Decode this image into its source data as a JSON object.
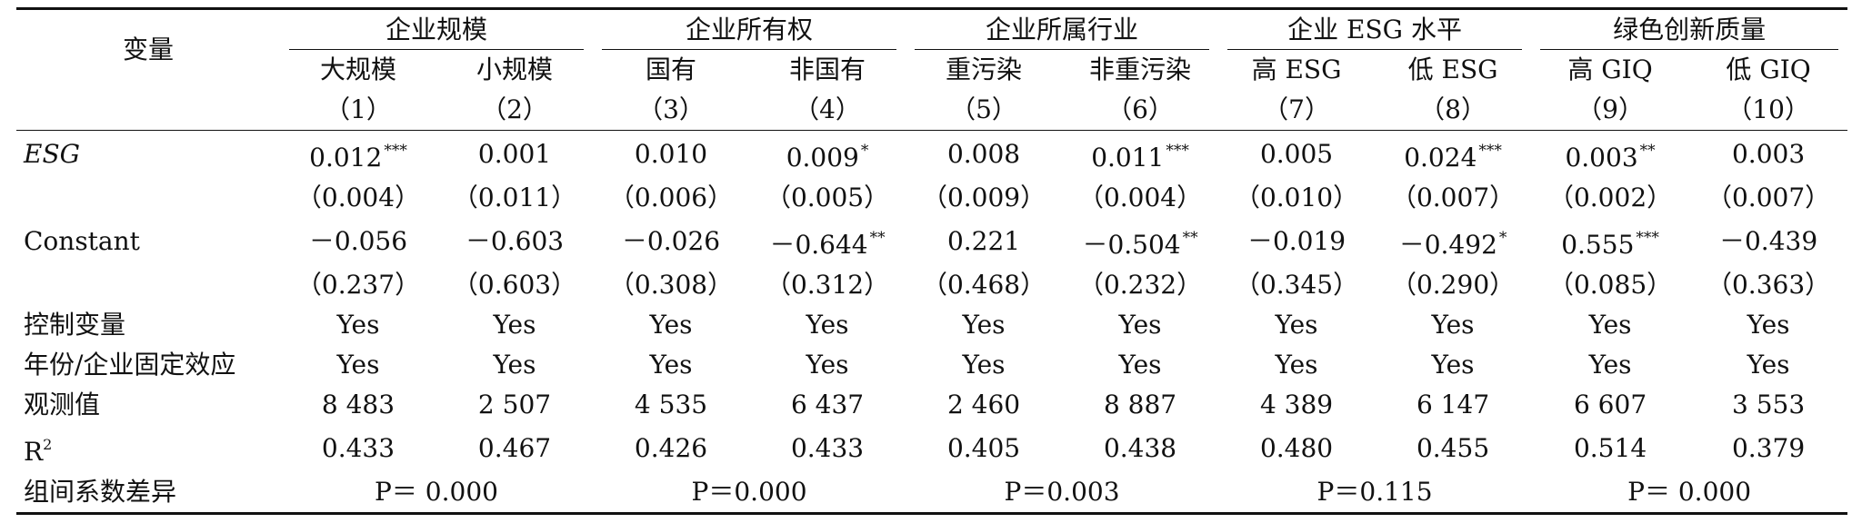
{
  "table": {
    "variable_header": "变量",
    "groups": [
      {
        "label": "企业规模",
        "cols": [
          {
            "name": "大规模",
            "num": "（1）"
          },
          {
            "name": "小规模",
            "num": "（2）"
          }
        ]
      },
      {
        "label": "企业所有权",
        "cols": [
          {
            "name": "国有",
            "num": "（3）"
          },
          {
            "name": "非国有",
            "num": "（4）"
          }
        ]
      },
      {
        "label": "企业所属行业",
        "cols": [
          {
            "name": "重污染",
            "num": "（5）"
          },
          {
            "name": "非重污染",
            "num": "（6）"
          }
        ]
      },
      {
        "label": "企业 ESG 水平",
        "cols": [
          {
            "name": "高 ESG",
            "num": "（7）"
          },
          {
            "name": "低 ESG",
            "num": "（8）"
          }
        ]
      },
      {
        "label": "绿色创新质量",
        "cols": [
          {
            "name": "高 GIQ",
            "num": "（9）"
          },
          {
            "name": "低 GIQ",
            "num": "（10）"
          }
        ]
      }
    ],
    "rows": {
      "esg": {
        "label": "ESG",
        "coef": [
          {
            "v": "0.012",
            "s": "***"
          },
          {
            "v": "0.001",
            "s": ""
          },
          {
            "v": "0.010",
            "s": ""
          },
          {
            "v": "0.009",
            "s": "*"
          },
          {
            "v": "0.008",
            "s": ""
          },
          {
            "v": "0.011",
            "s": "***"
          },
          {
            "v": "0.005",
            "s": ""
          },
          {
            "v": "0.024",
            "s": "***"
          },
          {
            "v": "0.003",
            "s": "**"
          },
          {
            "v": "0.003",
            "s": ""
          }
        ],
        "se": [
          "（0.004）",
          "（0.011）",
          "（0.006）",
          "（0.005）",
          "（0.009）",
          "（0.004）",
          "（0.010）",
          "（0.007）",
          "（0.002）",
          "（0.007）"
        ]
      },
      "constant": {
        "label": "Constant",
        "coef": [
          {
            "v": "－0.056",
            "s": ""
          },
          {
            "v": "－0.603",
            "s": ""
          },
          {
            "v": "－0.026",
            "s": ""
          },
          {
            "v": "－0.644",
            "s": "**"
          },
          {
            "v": "0.221",
            "s": ""
          },
          {
            "v": "－0.504",
            "s": "**"
          },
          {
            "v": "－0.019",
            "s": ""
          },
          {
            "v": "－0.492",
            "s": "*"
          },
          {
            "v": "0.555",
            "s": "***"
          },
          {
            "v": "－0.439",
            "s": ""
          }
        ],
        "se": [
          "（0.237）",
          "（0.603）",
          "（0.308）",
          "（0.312）",
          "（0.468）",
          "（0.232）",
          "（0.345）",
          "（0.290）",
          "（0.085）",
          "（0.363）"
        ]
      },
      "controls": {
        "label": "控制变量",
        "values": [
          "Yes",
          "Yes",
          "Yes",
          "Yes",
          "Yes",
          "Yes",
          "Yes",
          "Yes",
          "Yes",
          "Yes"
        ]
      },
      "fixed_effects": {
        "label": "年份/企业固定效应",
        "values": [
          "Yes",
          "Yes",
          "Yes",
          "Yes",
          "Yes",
          "Yes",
          "Yes",
          "Yes",
          "Yes",
          "Yes"
        ]
      },
      "observations": {
        "label": "观测值",
        "values": [
          "8 483",
          "2 507",
          "4 535",
          "6 437",
          "2 460",
          "8 887",
          "4 389",
          "6 147",
          "6 607",
          "3 553"
        ]
      },
      "r2": {
        "label_base": "R",
        "label_sup": "2",
        "values": [
          "0.433",
          "0.467",
          "0.426",
          "0.433",
          "0.405",
          "0.438",
          "0.480",
          "0.455",
          "0.514",
          "0.379"
        ]
      },
      "diff": {
        "label": "组间系数差异",
        "values": [
          "P＝ 0.000",
          "P＝0.000",
          "P＝0.003",
          "P＝0.115",
          "P＝ 0.000"
        ]
      }
    }
  }
}
